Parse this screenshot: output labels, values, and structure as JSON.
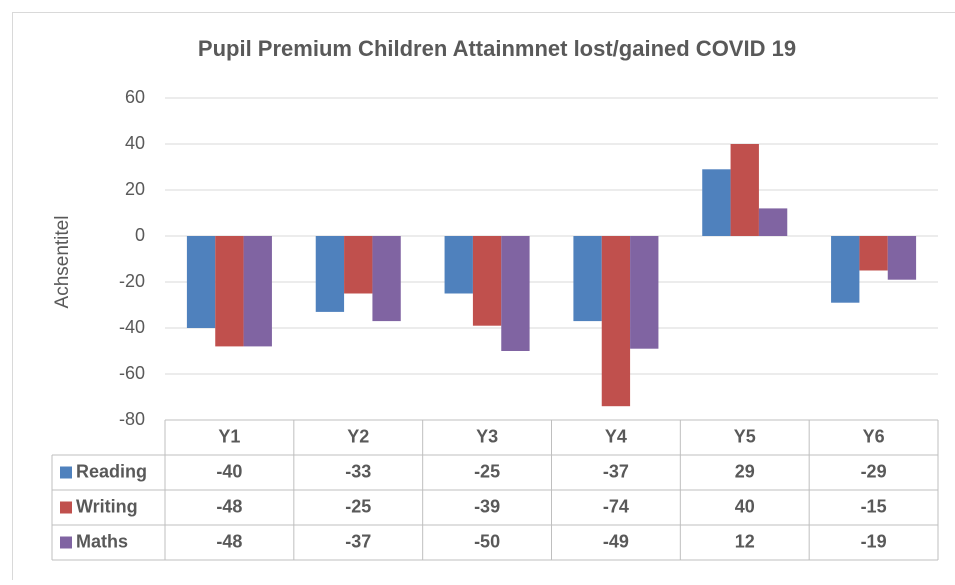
{
  "chart_data": {
    "type": "bar",
    "title": "Pupil Premium Children Attainmnet lost/gained COVID 19",
    "y_label": "Achsentitel",
    "categories": [
      "Y1",
      "Y2",
      "Y3",
      "Y4",
      "Y5",
      "Y6"
    ],
    "series": [
      {
        "name": "Reading",
        "color": "#4f81bd",
        "values": [
          -40,
          -33,
          -25,
          -37,
          29,
          -29
        ]
      },
      {
        "name": "Writing",
        "color": "#c0504d",
        "values": [
          -48,
          -25,
          -39,
          -74,
          40,
          -15
        ]
      },
      {
        "name": "Maths",
        "color": "#8064a2",
        "values": [
          -48,
          -37,
          -50,
          -49,
          12,
          -19
        ]
      }
    ],
    "ylim": [
      -80,
      60
    ],
    "yticks": [
      -80,
      -60,
      -40,
      -20,
      0,
      20,
      40,
      60
    ],
    "grid": true
  }
}
